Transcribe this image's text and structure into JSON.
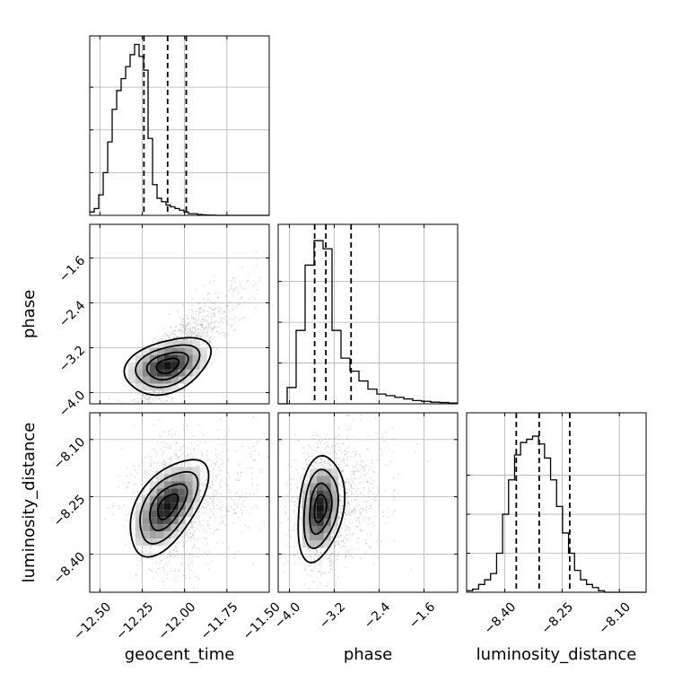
{
  "chart_data": {
    "type": "corner",
    "grid": true,
    "parameters": [
      {
        "name": "geocent_time",
        "label": "geocent_time",
        "range": [
          -12.56,
          -11.5
        ],
        "ticks": [
          -12.5,
          -12.25,
          -12.0,
          -11.75,
          -11.5
        ],
        "tick_labels": [
          "−12.50",
          "−12.25",
          "−12.00",
          "−11.75",
          "−11.50"
        ],
        "quantiles": [
          -12.24,
          -12.1,
          -11.99
        ],
        "hist": {
          "edges_start": -12.56,
          "bin_width": 0.0265,
          "counts": [
            0.02,
            0.04,
            0.12,
            0.25,
            0.43,
            0.62,
            0.73,
            0.8,
            0.87,
            0.94,
            1.0,
            0.93,
            0.85,
            0.45,
            0.18,
            0.1,
            0.08,
            0.06,
            0.05,
            0.04,
            0.03,
            0.02,
            0.01,
            0.01,
            0.005,
            0.003,
            0.002,
            0.001,
            0.0,
            0.0,
            0.0,
            0.0,
            0.0,
            0.0,
            0.0,
            0.0,
            0.0,
            0.0,
            0.0,
            0.0
          ],
          "max": 1.05
        }
      },
      {
        "name": "phase",
        "label": "phase",
        "range": [
          -4.2,
          -1.0
        ],
        "ticks": [
          -4.0,
          -3.2,
          -2.4,
          -1.6
        ],
        "tick_labels": [
          "−4.0",
          "−3.2",
          "−2.4",
          "−1.6"
        ],
        "quantiles": [
          -3.55,
          -3.35,
          -2.9
        ],
        "hist": {
          "edges_start": -4.2,
          "bin_width": 0.16,
          "counts": [
            0.0,
            0.1,
            0.45,
            0.85,
            1.0,
            0.95,
            0.45,
            0.28,
            0.2,
            0.14,
            0.09,
            0.06,
            0.05,
            0.04,
            0.03,
            0.02,
            0.015,
            0.01,
            0.008,
            0.005
          ],
          "max": 1.1
        }
      },
      {
        "name": "luminosity_distance",
        "label": "luminosity_distance",
        "range": [
          -8.5,
          -8.03
        ],
        "ticks": [
          -8.4,
          -8.25,
          -8.1
        ],
        "tick_labels": [
          "−8.40",
          "−8.25",
          "−8.10"
        ],
        "quantiles": [
          -8.37,
          -8.31,
          -8.23
        ],
        "hist": {
          "edges_start": -8.5,
          "bin_width": 0.0157,
          "counts": [
            0.01,
            0.02,
            0.05,
            0.08,
            0.12,
            0.25,
            0.5,
            0.72,
            0.88,
            0.96,
            0.98,
            1.0,
            0.95,
            0.86,
            0.72,
            0.55,
            0.38,
            0.25,
            0.14,
            0.08,
            0.05,
            0.03,
            0.01,
            0.0,
            0.0,
            0.0,
            0.0,
            0.0,
            0.0,
            0.0
          ],
          "max": 1.15
        }
      }
    ],
    "pairs": [
      {
        "x": 0,
        "y": 1,
        "center": [
          -12.1,
          -3.52
        ],
        "sigma": [
          0.11,
          0.22
        ],
        "rho": 0.35,
        "spread": [
          0.2,
          0.8
        ],
        "trend": 3.0
      },
      {
        "x": 0,
        "y": 2,
        "center": [
          -12.1,
          -8.275
        ],
        "sigma": [
          0.1,
          0.055
        ],
        "rho": 0.55,
        "spread": [
          0.22,
          0.1
        ],
        "trend": 0.12
      },
      {
        "x": 1,
        "y": 2,
        "center": [
          -3.45,
          -8.28
        ],
        "sigma": [
          0.18,
          0.06
        ],
        "rho": 0.25,
        "spread": [
          0.5,
          0.09
        ],
        "trend": 0.05
      }
    ]
  }
}
